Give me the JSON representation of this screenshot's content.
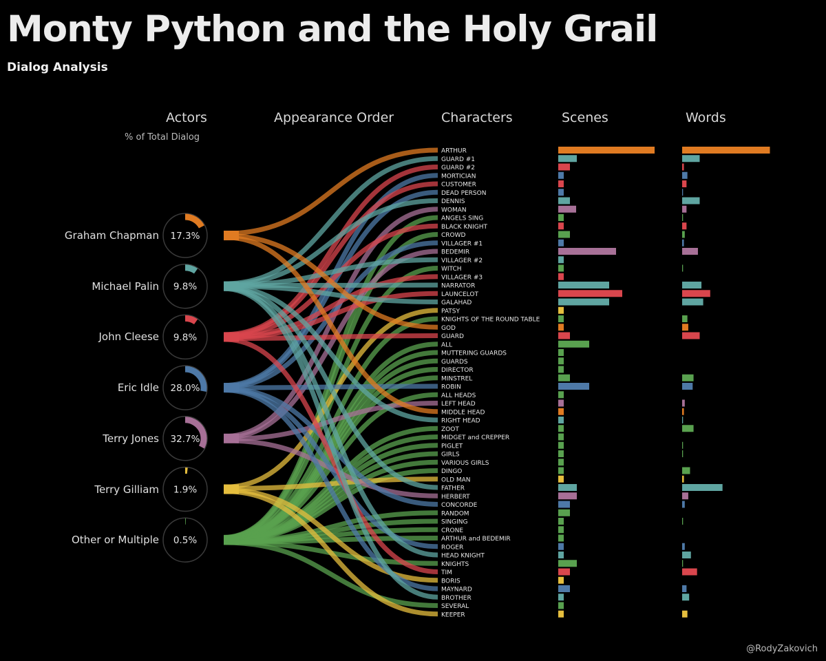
{
  "title": "Monty Python and the Holy Grail",
  "subtitle": "Dialog Analysis",
  "credit": "@RodyZakovich",
  "headers": {
    "actors": "Actors",
    "pct": "% of Total Dialog",
    "order": "Appearance Order",
    "characters": "Characters",
    "scenes": "Scenes",
    "words": "Words"
  },
  "colors": {
    "Graham Chapman": "#e07b22",
    "Michael Palin": "#5fa5a1",
    "John Cleese": "#d9464d",
    "Eric Idle": "#4e79a7",
    "Terry Jones": "#a77097",
    "Terry Gilliam": "#e5be3e",
    "Other or Multiple": "#59a14f"
  },
  "chart_data": {
    "type": "sankey",
    "actors": [
      {
        "name": "Graham Chapman",
        "pct": "17.3%",
        "value": 17.3
      },
      {
        "name": "Michael Palin",
        "pct": "9.8%",
        "value": 9.8
      },
      {
        "name": "John Cleese",
        "pct": "9.8%",
        "value": 9.8
      },
      {
        "name": "Eric Idle",
        "pct": "28.0%",
        "value": 28.0
      },
      {
        "name": "Terry Jones",
        "pct": "32.7%",
        "value": 32.7
      },
      {
        "name": "Terry Gilliam",
        "pct": "1.9%",
        "value": 1.9
      },
      {
        "name": "Other or Multiple",
        "pct": "0.5%",
        "value": 0.5
      }
    ],
    "characters": [
      {
        "name": "ARTHUR",
        "actor": "Graham Chapman",
        "scenes": 14,
        "words": 50
      },
      {
        "name": "GUARD #1",
        "actor": "Michael Palin",
        "scenes": 2.7,
        "words": 10
      },
      {
        "name": "GUARD #2",
        "actor": "John Cleese",
        "scenes": 1.7,
        "words": 1
      },
      {
        "name": "MORTICIAN",
        "actor": "Eric Idle",
        "scenes": 0.8,
        "words": 3
      },
      {
        "name": "CUSTOMER",
        "actor": "John Cleese",
        "scenes": 0.8,
        "words": 2.5
      },
      {
        "name": "DEAD PERSON",
        "actor": "Eric Idle",
        "scenes": 0.8,
        "words": 0.5
      },
      {
        "name": "DENNIS",
        "actor": "Michael Palin",
        "scenes": 1.7,
        "words": 10
      },
      {
        "name": "WOMAN",
        "actor": "Terry Jones",
        "scenes": 2.6,
        "words": 2.5
      },
      {
        "name": "ANGELS SING",
        "actor": "Other or Multiple",
        "scenes": 0.8,
        "words": 0.5
      },
      {
        "name": "BLACK KNIGHT",
        "actor": "John Cleese",
        "scenes": 0.8,
        "words": 2.5
      },
      {
        "name": "CROWD",
        "actor": "Other or Multiple",
        "scenes": 1.7,
        "words": 1.5
      },
      {
        "name": "VILLAGER #1",
        "actor": "Eric Idle",
        "scenes": 0.8,
        "words": 1
      },
      {
        "name": "BEDEMIR",
        "actor": "Terry Jones",
        "scenes": 8.4,
        "words": 9
      },
      {
        "name": "VILLAGER #2",
        "actor": "Michael Palin",
        "scenes": 0.8,
        "words": 0
      },
      {
        "name": "WITCH",
        "actor": "Other or Multiple",
        "scenes": 0.8,
        "words": 0.5
      },
      {
        "name": "VILLAGER #3",
        "actor": "John Cleese",
        "scenes": 0.8,
        "words": 0
      },
      {
        "name": "NARRATOR",
        "actor": "Michael Palin",
        "scenes": 7.4,
        "words": 11
      },
      {
        "name": "LAUNCELOT",
        "actor": "John Cleese",
        "scenes": 9.3,
        "words": 16
      },
      {
        "name": "GALAHAD",
        "actor": "Michael Palin",
        "scenes": 7.4,
        "words": 12
      },
      {
        "name": "PATSY",
        "actor": "Terry Gilliam",
        "scenes": 0.8,
        "words": 0
      },
      {
        "name": "KNIGHTS OF THE ROUND TABLE",
        "actor": "Other or Multiple",
        "scenes": 0.8,
        "words": 3
      },
      {
        "name": "GOD",
        "actor": "Graham Chapman",
        "scenes": 0.8,
        "words": 3.5
      },
      {
        "name": "GUARD",
        "actor": "John Cleese",
        "scenes": 1.7,
        "words": 10
      },
      {
        "name": "ALL",
        "actor": "Other or Multiple",
        "scenes": 4.5,
        "words": 0
      },
      {
        "name": "MUTTERING GUARDS",
        "actor": "Other or Multiple",
        "scenes": 0.8,
        "words": 0
      },
      {
        "name": "GUARDS",
        "actor": "Other or Multiple",
        "scenes": 0.8,
        "words": 0
      },
      {
        "name": "DIRECTOR",
        "actor": "Other or Multiple",
        "scenes": 0.8,
        "words": 0
      },
      {
        "name": "MINSTREL",
        "actor": "Other or Multiple",
        "scenes": 1.7,
        "words": 6.5
      },
      {
        "name": "ROBIN",
        "actor": "Eric Idle",
        "scenes": 4.5,
        "words": 6
      },
      {
        "name": "ALL HEADS",
        "actor": "Other or Multiple",
        "scenes": 0.8,
        "words": 0
      },
      {
        "name": "LEFT HEAD",
        "actor": "Terry Jones",
        "scenes": 0.8,
        "words": 1.5
      },
      {
        "name": "MIDDLE HEAD",
        "actor": "Graham Chapman",
        "scenes": 0.8,
        "words": 1
      },
      {
        "name": "RIGHT HEAD",
        "actor": "Michael Palin",
        "scenes": 0.8,
        "words": 0.5
      },
      {
        "name": "ZOOT",
        "actor": "Other or Multiple",
        "scenes": 0.8,
        "words": 6.5
      },
      {
        "name": "MIDGET and CREPPER",
        "actor": "Other or Multiple",
        "scenes": 0.8,
        "words": 0
      },
      {
        "name": "PIGLET",
        "actor": "Other or Multiple",
        "scenes": 0.8,
        "words": 0.5
      },
      {
        "name": "GIRLS",
        "actor": "Other or Multiple",
        "scenes": 0.8,
        "words": 0.5
      },
      {
        "name": "VARIOUS GIRLS",
        "actor": "Other or Multiple",
        "scenes": 0.8,
        "words": 0
      },
      {
        "name": "DINGO",
        "actor": "Other or Multiple",
        "scenes": 0.8,
        "words": 4.5
      },
      {
        "name": "OLD MAN",
        "actor": "Terry Gilliam",
        "scenes": 0.8,
        "words": 1
      },
      {
        "name": "FATHER",
        "actor": "Michael Palin",
        "scenes": 2.7,
        "words": 23
      },
      {
        "name": "HERBERT",
        "actor": "Terry Jones",
        "scenes": 2.7,
        "words": 3.5
      },
      {
        "name": "CONCORDE",
        "actor": "Eric Idle",
        "scenes": 1.7,
        "words": 1.5
      },
      {
        "name": "RANDOM",
        "actor": "Other or Multiple",
        "scenes": 1.7,
        "words": 0
      },
      {
        "name": "SINGING",
        "actor": "Other or Multiple",
        "scenes": 0.8,
        "words": 0.5
      },
      {
        "name": "CRONE",
        "actor": "Other or Multiple",
        "scenes": 0.8,
        "words": 0
      },
      {
        "name": "ARTHUR and BEDEMIR",
        "actor": "Other or Multiple",
        "scenes": 0.8,
        "words": 0
      },
      {
        "name": "ROGER",
        "actor": "Eric Idle",
        "scenes": 0.8,
        "words": 1.5
      },
      {
        "name": "HEAD KNIGHT",
        "actor": "Michael Palin",
        "scenes": 0.8,
        "words": 5
      },
      {
        "name": "KNIGHTS",
        "actor": "Other or Multiple",
        "scenes": 2.7,
        "words": 0.5
      },
      {
        "name": "TIM",
        "actor": "John Cleese",
        "scenes": 1.7,
        "words": 8.5
      },
      {
        "name": "BORIS",
        "actor": "Terry Gilliam",
        "scenes": 0.8,
        "words": 0
      },
      {
        "name": "MAYNARD",
        "actor": "Eric Idle",
        "scenes": 1.7,
        "words": 2.5
      },
      {
        "name": "BROTHER",
        "actor": "Michael Palin",
        "scenes": 0.8,
        "words": 4
      },
      {
        "name": "SEVERAL",
        "actor": "Other or Multiple",
        "scenes": 0.8,
        "words": 0
      },
      {
        "name": "KEEPER",
        "actor": "Terry Gilliam",
        "scenes": 0.8,
        "words": 3
      }
    ]
  }
}
